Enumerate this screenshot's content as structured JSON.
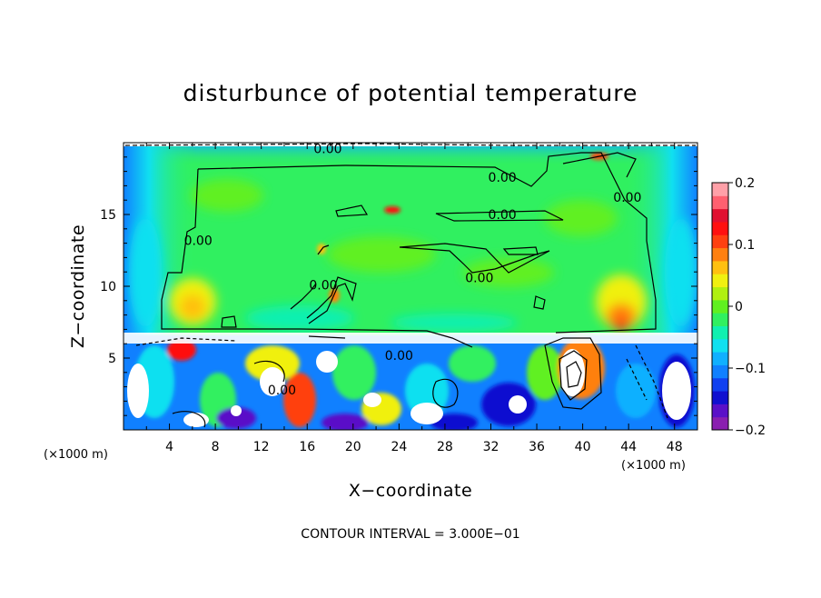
{
  "chart_data": {
    "type": "heatmap",
    "title": "disturbunce of potential temperature",
    "xlabel": "X−coordinate",
    "ylabel": "Z−coordinate",
    "x_unit": "(×1000 m)",
    "x_unit_right": "(×1000 m)",
    "xlim": [
      0,
      50
    ],
    "ylim": [
      0,
      20
    ],
    "x_ticks": [
      4,
      8,
      12,
      16,
      20,
      24,
      28,
      32,
      36,
      40,
      44,
      48
    ],
    "y_ticks": [
      5,
      10,
      15
    ],
    "colorbar": {
      "min": -0.2,
      "max": 0.2,
      "ticks": [
        0.2,
        0.1,
        0,
        -0.1,
        -0.2
      ],
      "tick_labels": [
        "0.2",
        "0.1",
        "0",
        "−0.1",
        "−0.2"
      ],
      "colors": [
        "#8a1fb0",
        "#5a10c8",
        "#1010d0",
        "#1040f0",
        "#1080ff",
        "#10b0ff",
        "#10e0f0",
        "#10f0b0",
        "#30f060",
        "#60f020",
        "#b0f010",
        "#f0f010",
        "#ffc010",
        "#ff8010",
        "#ff4010",
        "#ff1010",
        "#e01030",
        "#ff6070",
        "#ffa0a8"
      ]
    },
    "contour_labels": [
      {
        "text": "0.00",
        "x": 17.8,
        "y": 19.6
      },
      {
        "text": "0.00",
        "x": 33.0,
        "y": 17.6
      },
      {
        "text": "0.00",
        "x": 33.0,
        "y": 15.0
      },
      {
        "text": "0.00",
        "x": 31.0,
        "y": 10.6
      },
      {
        "text": "0.00",
        "x": 17.4,
        "y": 10.1
      },
      {
        "text": "0.00",
        "x": 6.5,
        "y": 13.2
      },
      {
        "text": "0.00",
        "x": 13.8,
        "y": 2.8
      },
      {
        "text": "0.00",
        "x": 24.0,
        "y": 5.2
      },
      {
        "text": "0.00",
        "x": 43.9,
        "y": 16.2
      }
    ],
    "contour_interval_note": "CONTOUR INTERVAL = 3.000E−01"
  },
  "colors": {
    "background": "#ffffff",
    "upper_field": "#30f060",
    "lower_field": "#1080ff"
  }
}
